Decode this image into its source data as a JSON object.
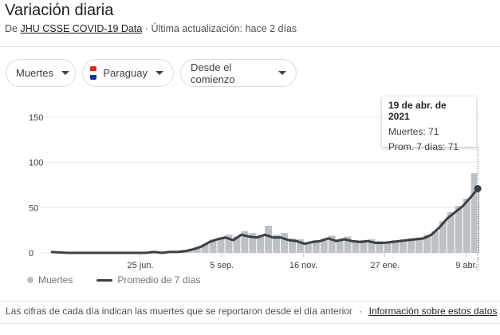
{
  "header": {
    "title": "Variación diaria",
    "source_prefix": "De",
    "source_link": "JHU CSSE COVID-19 Data",
    "separator": "·",
    "updated": "Última actualización: hace 2 días"
  },
  "filters": {
    "metric": "Muertes",
    "country": "Paraguay",
    "range": "Desde el comienzo",
    "flag_colors": [
      "#d52b1e",
      "#ffffff",
      "#0038a8"
    ]
  },
  "tooltip": {
    "date": "19 de abr. de 2021",
    "deaths": "Muertes: 71",
    "avg": "Prom. 7 días: 71"
  },
  "legend": {
    "bars": "Muertes",
    "line": "Promedio de 7 días"
  },
  "footer": {
    "note": "Las cifras de cada día indican las muertes que se reportaron desde el día anterior",
    "separator": "·",
    "link": "Información sobre estos datos"
  },
  "colors": {
    "bars": "#bdc1c6",
    "line": "#3c4043",
    "grid": "#e8eaed"
  },
  "chart_data": {
    "type": "bar",
    "ylim": [
      0,
      150
    ],
    "yticks": [
      "0",
      "50",
      "100",
      "150"
    ],
    "ytick_values": [
      0,
      50,
      100,
      150
    ],
    "xticks": [
      {
        "label": "25 jun.",
        "date": "2020-06-25"
      },
      {
        "label": "5 sep.",
        "date": "2020-09-05"
      },
      {
        "label": "16 nov.",
        "date": "2020-11-16"
      },
      {
        "label": "27 ene.",
        "date": "2021-01-27"
      },
      {
        "label": "9 abr.",
        "date": "2021-04-09"
      }
    ],
    "grid": true,
    "legend": "bottom-left",
    "x": [
      "2020-04-07",
      "2020-04-21",
      "2020-05-05",
      "2020-05-19",
      "2020-06-02",
      "2020-06-16",
      "2020-06-30",
      "2020-07-07",
      "2020-07-14",
      "2020-07-21",
      "2020-07-28",
      "2020-08-04",
      "2020-08-11",
      "2020-08-18",
      "2020-08-25",
      "2020-09-01",
      "2020-09-08",
      "2020-09-15",
      "2020-09-22",
      "2020-09-29",
      "2020-10-06",
      "2020-10-13",
      "2020-10-20",
      "2020-10-27",
      "2020-11-03",
      "2020-11-10",
      "2020-11-17",
      "2020-11-24",
      "2020-12-01",
      "2020-12-08",
      "2020-12-15",
      "2020-12-22",
      "2020-12-29",
      "2021-01-05",
      "2021-01-12",
      "2021-01-19",
      "2021-01-26",
      "2021-02-02",
      "2021-02-09",
      "2021-02-16",
      "2021-02-23",
      "2021-03-02",
      "2021-03-09",
      "2021-03-16",
      "2021-03-23",
      "2021-03-30",
      "2021-04-06",
      "2021-04-13",
      "2021-04-19"
    ],
    "series": [
      {
        "name": "Muertes",
        "type": "bar",
        "values": [
          1,
          0,
          0,
          0,
          0,
          0,
          0,
          1,
          1,
          2,
          2,
          3,
          6,
          10,
          15,
          17,
          20,
          18,
          24,
          22,
          20,
          30,
          20,
          22,
          16,
          15,
          12,
          14,
          16,
          19,
          15,
          18,
          14,
          14,
          15,
          13,
          12,
          14,
          15,
          16,
          17,
          20,
          24,
          35,
          45,
          52,
          60,
          88,
          71
        ]
      },
      {
        "name": "Promedio de 7 días",
        "type": "line",
        "values": [
          1,
          0,
          0,
          0,
          0,
          0,
          0,
          1,
          0,
          1,
          1,
          2,
          4,
          7,
          12,
          15,
          17,
          14,
          20,
          18,
          17,
          20,
          17,
          17,
          14,
          13,
          10,
          12,
          13,
          16,
          13,
          15,
          13,
          12,
          13,
          11,
          11,
          12,
          13,
          14,
          15,
          16,
          20,
          28,
          38,
          45,
          52,
          62,
          71
        ]
      }
    ],
    "highlight": {
      "date": "2021-04-19",
      "deaths": 71,
      "avg": 71
    }
  }
}
